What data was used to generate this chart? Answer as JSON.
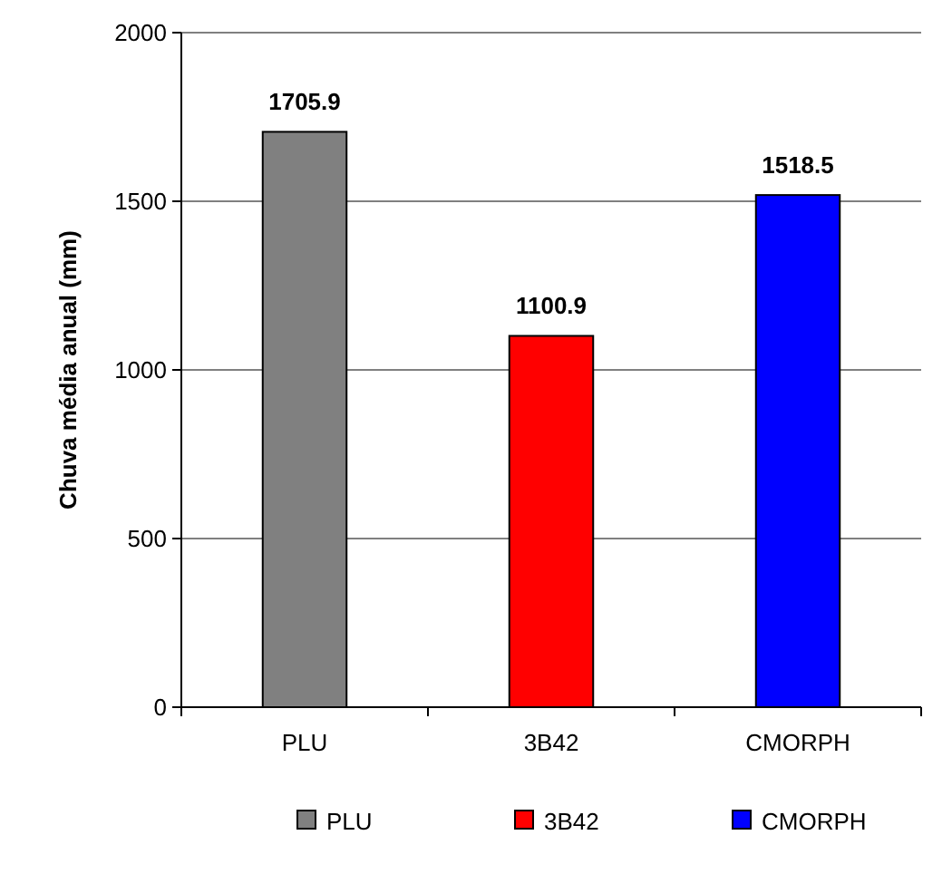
{
  "chart_data": {
    "type": "bar",
    "ylabel": "Chuva média anual (mm)",
    "categories": [
      "PLU",
      "3B42",
      "CMORPH"
    ],
    "series": [
      {
        "name": "PLU",
        "color": "#808080",
        "values": [
          1705.9,
          null,
          null
        ]
      },
      {
        "name": "3B42",
        "color": "#ff0000",
        "values": [
          null,
          1100.9,
          null
        ]
      },
      {
        "name": "CMORPH",
        "color": "#0000ff",
        "values": [
          null,
          null,
          1518.5
        ]
      }
    ],
    "ylim": [
      0,
      2000
    ],
    "yticks": [
      0,
      500,
      1000,
      1500,
      2000
    ],
    "grid": "y",
    "data_labels": true,
    "legend": "bottom"
  }
}
